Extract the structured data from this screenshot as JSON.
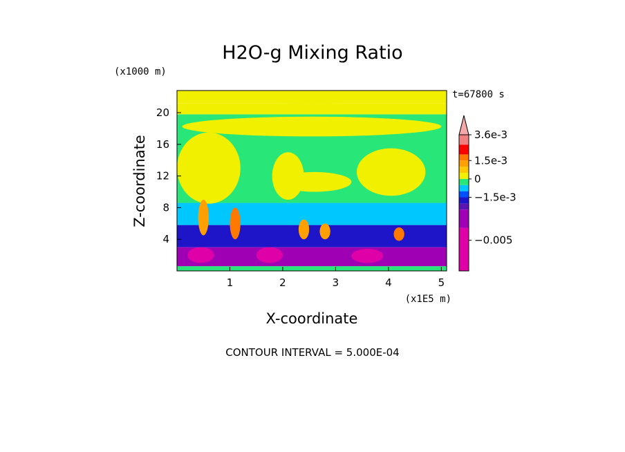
{
  "chart_data": {
    "type": "heatmap",
    "title": "H2O-g Mixing Ratio",
    "xlabel": "X-coordinate",
    "ylabel": "Z-coordinate",
    "x_unit_label": "(x1E5 m)",
    "y_unit_label": "(x1000 m)",
    "time_label": "t=67800 s",
    "footer": "CONTOUR INTERVAL = 5.000E-04",
    "xlim": [
      0,
      5.1
    ],
    "ylim": [
      0,
      22.8
    ],
    "x_ticks": [
      1,
      2,
      3,
      4,
      5
    ],
    "x_tick_labels": [
      "1",
      "2",
      "3",
      "4",
      "5"
    ],
    "y_ticks": [
      4,
      8,
      12,
      16,
      20
    ],
    "y_tick_labels": [
      "4",
      "8",
      "12",
      "16",
      "20"
    ],
    "colorbar": {
      "labels": [
        {
          "value": 0.0036,
          "text": "3.6e-3"
        },
        {
          "value": 0.0015,
          "text": "1.5e-3"
        },
        {
          "value": 0,
          "text": "0"
        },
        {
          "value": -0.0015,
          "text": "−1.5e-3"
        },
        {
          "value": -0.005,
          "text": "−0.005"
        }
      ],
      "levels": [
        {
          "from": -0.0075,
          "to": -0.004,
          "color": "#e000a8"
        },
        {
          "from": -0.004,
          "to": -0.0025,
          "color": "#a000b4"
        },
        {
          "from": -0.0025,
          "to": -0.002,
          "color": "#5a14b4"
        },
        {
          "from": -0.002,
          "to": -0.0015,
          "color": "#1e14c8"
        },
        {
          "from": -0.0015,
          "to": -0.001,
          "color": "#0050ff"
        },
        {
          "from": -0.001,
          "to": -0.0005,
          "color": "#00c8ff"
        },
        {
          "from": -0.0005,
          "to": 0,
          "color": "#28e678"
        },
        {
          "from": 0,
          "to": 0.0005,
          "color": "#f0f000"
        },
        {
          "from": 0.0005,
          "to": 0.001,
          "color": "#ffc800"
        },
        {
          "from": 0.001,
          "to": 0.0015,
          "color": "#ffa000"
        },
        {
          "from": 0.0015,
          "to": 0.002,
          "color": "#ff7800"
        },
        {
          "from": 0.002,
          "to": 0.0028,
          "color": "#ff0000"
        },
        {
          "from": 0.0028,
          "to": 0.0036,
          "color": "#f08080"
        }
      ],
      "over_color": "#f4a8a8"
    },
    "bands": [
      {
        "z": [
          0,
          0.6
        ],
        "value": -0.0005
      },
      {
        "z": [
          0.6,
          3.0
        ],
        "value": -0.0032
      },
      {
        "z": [
          3.0,
          5.8
        ],
        "value": -0.0017
      },
      {
        "z": [
          5.8,
          8.6
        ],
        "value": -0.0008
      },
      {
        "z": [
          8.6,
          19.8
        ],
        "value": -0.0003
      },
      {
        "z": [
          19.8,
          21.2
        ],
        "value": 0.0002
      },
      {
        "z": [
          21.2,
          22.8
        ],
        "value": 0.0002
      }
    ],
    "features": [
      {
        "x": [
          0.0,
          5.1
        ],
        "z": [
          21.2,
          22.8
        ],
        "value": 0.0002
      },
      {
        "x": [
          0.1,
          5.0
        ],
        "z": [
          17.0,
          19.5
        ],
        "value": 0.0002
      },
      {
        "x": [
          0.0,
          1.2
        ],
        "z": [
          8.5,
          17.5
        ],
        "value": 0.0002
      },
      {
        "x": [
          1.8,
          2.4
        ],
        "z": [
          9.0,
          15.0
        ],
        "value": 0.0002
      },
      {
        "x": [
          1.9,
          3.3
        ],
        "z": [
          10.0,
          12.5
        ],
        "value": 0.0002
      },
      {
        "x": [
          3.4,
          4.7
        ],
        "z": [
          9.5,
          15.5
        ],
        "value": 0.0002
      },
      {
        "x": [
          0.4,
          0.6
        ],
        "z": [
          4.5,
          9.0
        ],
        "value": 0.0013
      },
      {
        "x": [
          1.0,
          1.2
        ],
        "z": [
          4.0,
          8.0
        ],
        "value": 0.0016
      },
      {
        "x": [
          2.3,
          2.5
        ],
        "z": [
          4.0,
          6.5
        ],
        "value": 0.0013
      },
      {
        "x": [
          2.7,
          2.9
        ],
        "z": [
          4.0,
          6.0
        ],
        "value": 0.0013
      },
      {
        "x": [
          4.1,
          4.3
        ],
        "z": [
          3.8,
          5.5
        ],
        "value": 0.0018
      },
      {
        "x": [
          0.2,
          0.7
        ],
        "z": [
          1.0,
          3.0
        ],
        "value": -0.0045
      },
      {
        "x": [
          1.5,
          2.0
        ],
        "z": [
          1.0,
          3.0
        ],
        "value": -0.0045
      },
      {
        "x": [
          3.3,
          3.9
        ],
        "z": [
          1.0,
          2.8
        ],
        "value": -0.0045
      }
    ]
  }
}
